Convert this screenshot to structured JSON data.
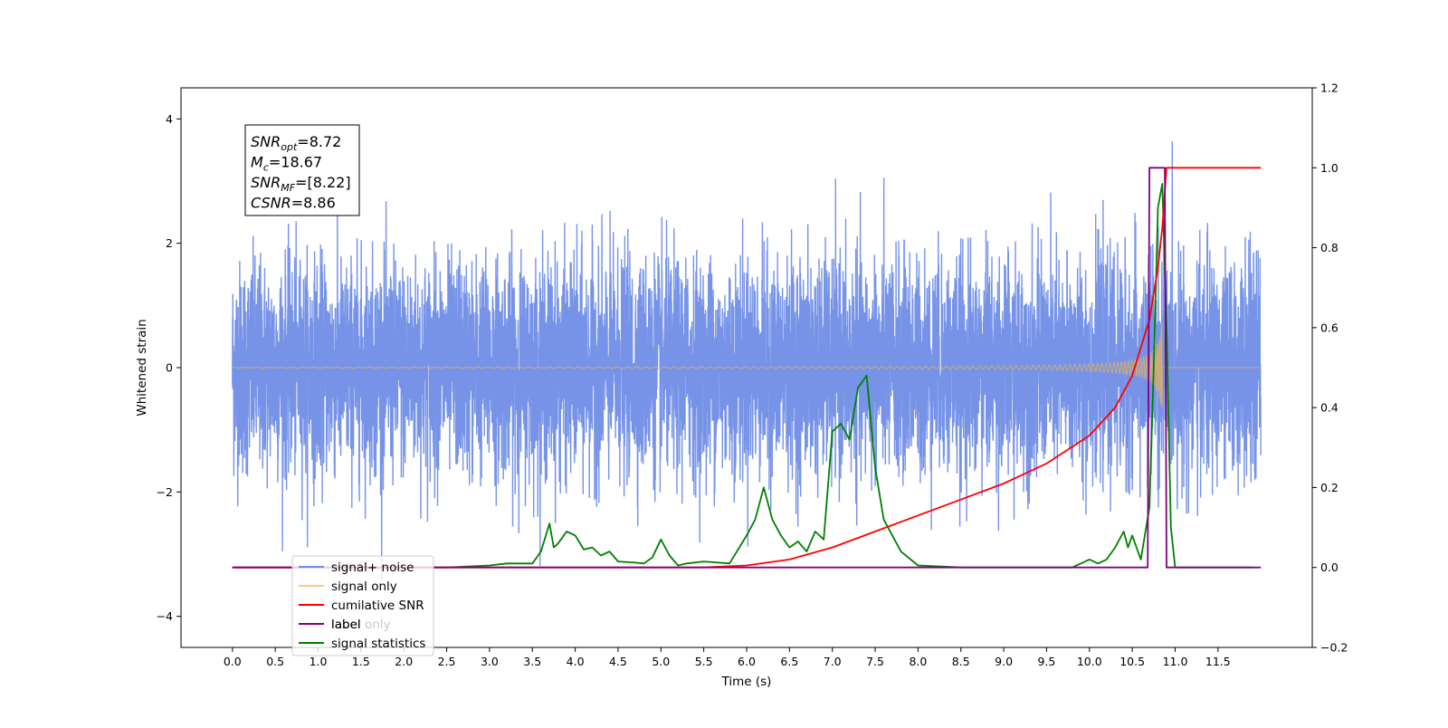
{
  "chart_data": {
    "type": "line",
    "xlabel": "Time (s)",
    "ylabel": "Whitened strain",
    "xlim": [
      -0.6,
      12.6
    ],
    "ylim": [
      -4.5,
      4.5
    ],
    "y2lim": [
      -0.2,
      1.2
    ],
    "x_ticks": [
      "0.0",
      "0.5",
      "1.0",
      "1.5",
      "2.0",
      "2.5",
      "3.0",
      "3.5",
      "4.0",
      "4.5",
      "5.0",
      "5.5",
      "6.0",
      "6.5",
      "7.0",
      "7.5",
      "8.0",
      "8.5",
      "9.0",
      "9.5",
      "10.0",
      "10.5",
      "11.0",
      "11.5"
    ],
    "y_ticks": [
      "4",
      "2",
      "0",
      "−2",
      "−4"
    ],
    "y2_ticks": [
      "1.2",
      "1.0",
      "0.8",
      "0.6",
      "0.4",
      "0.2",
      "0.0",
      "−0.2"
    ],
    "grid": false,
    "legend_position": "lower-left",
    "annotation": {
      "lines": [
        {
          "sym": "SNR",
          "sub": "opt",
          "value": "=8.72"
        },
        {
          "sym": "M",
          "sub": "c",
          "value": "=18.67"
        },
        {
          "sym": "SNR",
          "sub": "MF",
          "value": "=[8.22]"
        },
        {
          "sym": "CSNR",
          "sub": "",
          "value": "=8.86"
        }
      ]
    },
    "series": [
      {
        "name": "signal+ noise",
        "color": "#6f8de6",
        "axis": "left",
        "noise_sigma": 0.85,
        "x_range": [
          0.0,
          12.0
        ]
      },
      {
        "name": "signal only",
        "color": "#f5b54a",
        "axis": "left",
        "chirp_peak_amplitude": 0.8,
        "merger_time": 10.85
      },
      {
        "name": "cumilative SNR",
        "color": "#ff0000",
        "axis": "right",
        "x": [
          0.0,
          5.5,
          6.0,
          6.5,
          7.0,
          7.5,
          8.0,
          8.5,
          9.0,
          9.5,
          10.0,
          10.3,
          10.5,
          10.7,
          10.8,
          10.85,
          10.9,
          11.0,
          12.0
        ],
        "values": [
          0.0,
          0.0,
          0.005,
          0.02,
          0.05,
          0.09,
          0.13,
          0.17,
          0.21,
          0.26,
          0.33,
          0.4,
          0.48,
          0.62,
          0.75,
          0.85,
          1.0,
          1.0,
          1.0
        ]
      },
      {
        "name": "label",
        "color": "#800080",
        "axis": "right",
        "x": [
          0.0,
          10.68,
          10.7,
          10.88,
          10.9,
          12.0
        ],
        "values": [
          0.0,
          0.0,
          1.0,
          1.0,
          0.0,
          0.0
        ]
      },
      {
        "name": "label only",
        "color": "#ff00ff",
        "axis": "right",
        "hidden_behind_legend": true
      },
      {
        "name": "signal statistics",
        "color": "#008000",
        "axis": "right",
        "x": [
          0.0,
          2.5,
          3.0,
          3.2,
          3.5,
          3.6,
          3.7,
          3.75,
          3.8,
          3.9,
          4.0,
          4.1,
          4.2,
          4.3,
          4.4,
          4.5,
          4.7,
          4.8,
          4.9,
          5.0,
          5.1,
          5.2,
          5.3,
          5.5,
          5.8,
          6.0,
          6.1,
          6.2,
          6.3,
          6.4,
          6.5,
          6.6,
          6.7,
          6.8,
          6.9,
          7.0,
          7.1,
          7.2,
          7.3,
          7.4,
          7.5,
          7.6,
          7.8,
          8.0,
          8.5,
          9.0,
          9.5,
          9.8,
          10.0,
          10.1,
          10.2,
          10.3,
          10.4,
          10.45,
          10.5,
          10.6,
          10.7,
          10.75,
          10.8,
          10.85,
          10.9,
          10.95,
          11.0,
          11.1,
          11.9
        ],
        "values": [
          0.0,
          0.0,
          0.005,
          0.01,
          0.01,
          0.04,
          0.11,
          0.05,
          0.06,
          0.09,
          0.08,
          0.045,
          0.05,
          0.03,
          0.04,
          0.015,
          0.012,
          0.01,
          0.025,
          0.07,
          0.03,
          0.005,
          0.01,
          0.015,
          0.01,
          0.08,
          0.12,
          0.2,
          0.12,
          0.08,
          0.05,
          0.065,
          0.04,
          0.09,
          0.07,
          0.34,
          0.36,
          0.32,
          0.45,
          0.48,
          0.25,
          0.12,
          0.04,
          0.005,
          0.0,
          0.0,
          0.0,
          0.0,
          0.02,
          0.01,
          0.02,
          0.05,
          0.09,
          0.05,
          0.08,
          0.02,
          0.15,
          0.5,
          0.9,
          0.96,
          0.6,
          0.1,
          0.0,
          0.0,
          0.0
        ]
      }
    ]
  }
}
